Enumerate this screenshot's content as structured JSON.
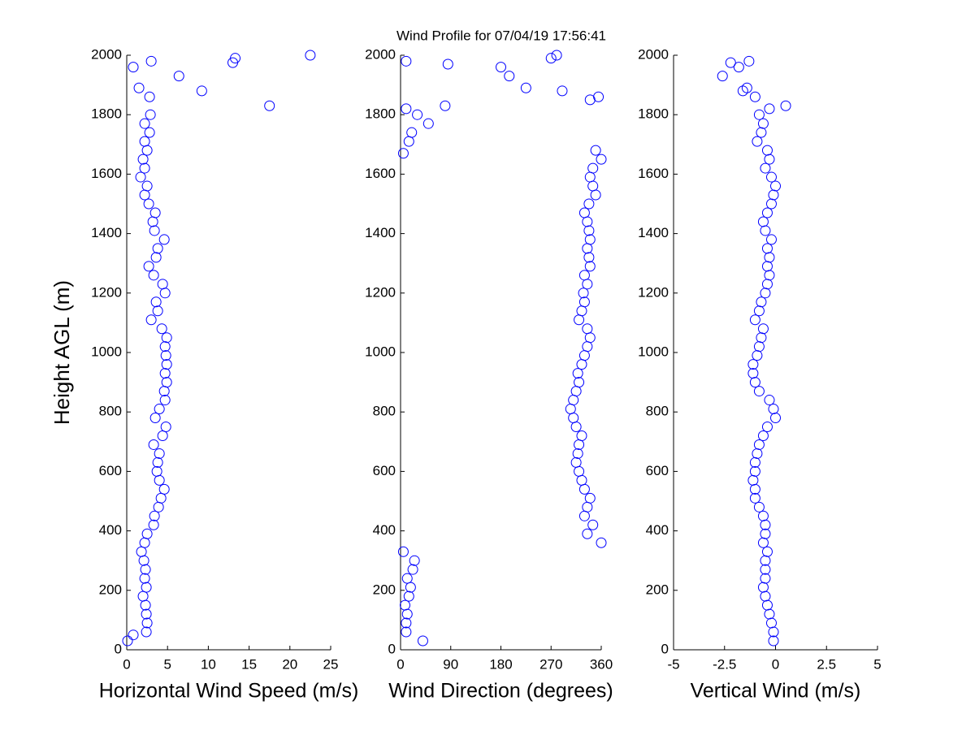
{
  "title": "Wind Profile for  07/04/19 17:56:41",
  "chart_data": [
    {
      "type": "scatter",
      "xlabel": "Horizontal Wind Speed (m/s)",
      "ylabel": "Height AGL (m)",
      "color": "#0000ff",
      "xlim": [
        0,
        25
      ],
      "xticks": [
        0,
        5,
        10,
        15,
        20,
        25
      ],
      "ylim": [
        0,
        2000
      ],
      "yticks": [
        0,
        200,
        400,
        600,
        800,
        1000,
        1200,
        1400,
        1600,
        1800,
        2000
      ],
      "x": [
        0.1,
        2.4,
        2.5,
        2.4,
        2.3,
        2.0,
        2.4,
        2.2,
        2.3,
        2.1,
        1.8,
        2.2,
        2.5,
        3.3,
        3.4,
        3.9,
        4.2,
        4.6,
        4.0,
        3.7,
        3.8,
        4.0,
        3.3,
        4.4,
        4.8,
        3.5,
        4.0,
        4.7,
        4.6,
        4.9,
        4.7,
        4.9,
        4.8,
        4.7,
        4.9,
        4.3,
        3.0,
        3.8,
        3.6,
        4.7,
        4.4,
        3.3,
        2.7,
        3.6,
        3.8,
        4.6,
        3.4,
        3.2,
        3.5,
        2.7,
        2.2,
        2.5,
        1.7,
        2.2,
        2.0,
        2.5,
        2.2,
        2.8,
        2.2,
        2.9,
        17.5,
        9.2,
        6.4,
        0.8,
        13,
        13.3,
        22.5,
        3,
        1.5,
        2.8,
        0.8
      ],
      "y": [
        30,
        60,
        90,
        120,
        150,
        180,
        210,
        240,
        270,
        300,
        330,
        360,
        390,
        420,
        450,
        480,
        510,
        540,
        570,
        600,
        630,
        660,
        690,
        720,
        750,
        780,
        810,
        840,
        870,
        900,
        930,
        960,
        990,
        1020,
        1050,
        1080,
        1110,
        1140,
        1170,
        1200,
        1230,
        1260,
        1290,
        1320,
        1350,
        1380,
        1410,
        1440,
        1470,
        1500,
        1530,
        1560,
        1590,
        1620,
        1650,
        1680,
        1710,
        1740,
        1770,
        1800,
        1830,
        1880,
        1930,
        1960,
        1975,
        1990,
        2000,
        1980,
        1890,
        1860,
        50
      ]
    },
    {
      "type": "scatter",
      "xlabel": "Wind Direction (degrees)",
      "color": "#0000ff",
      "xlim": [
        0,
        360
      ],
      "xticks": [
        0,
        90,
        180,
        270,
        360
      ],
      "ylim": [
        0,
        2000
      ],
      "yticks": [
        0,
        200,
        400,
        600,
        800,
        1000,
        1200,
        1400,
        1600,
        1800,
        2000
      ],
      "x": [
        40,
        10,
        10,
        12,
        8,
        15,
        18,
        12,
        22,
        25,
        5,
        360,
        335,
        345,
        330,
        335,
        340,
        330,
        325,
        320,
        315,
        318,
        320,
        325,
        315,
        310,
        305,
        310,
        315,
        320,
        318,
        325,
        330,
        335,
        340,
        335,
        320,
        325,
        330,
        328,
        335,
        330,
        340,
        338,
        335,
        340,
        338,
        335,
        330,
        338,
        350,
        345,
        340,
        345,
        360,
        350,
        15,
        20,
        50,
        30,
        80,
        290,
        225,
        195,
        180,
        85,
        10,
        270,
        280,
        355,
        340,
        10,
        5
      ],
      "y": [
        30,
        60,
        90,
        120,
        150,
        180,
        210,
        240,
        270,
        300,
        330,
        360,
        390,
        420,
        450,
        480,
        510,
        540,
        570,
        600,
        630,
        660,
        690,
        720,
        750,
        780,
        810,
        840,
        870,
        900,
        930,
        960,
        990,
        1020,
        1050,
        1080,
        1110,
        1140,
        1170,
        1200,
        1230,
        1260,
        1290,
        1320,
        1350,
        1380,
        1410,
        1440,
        1470,
        1500,
        1530,
        1560,
        1590,
        1620,
        1650,
        1680,
        1710,
        1740,
        1770,
        1800,
        1830,
        1880,
        1890,
        1930,
        1960,
        1970,
        1980,
        1990,
        2000,
        1860,
        1850,
        1820,
        1670
      ]
    },
    {
      "type": "scatter",
      "xlabel": "Vertical Wind (m/s)",
      "color": "#0000ff",
      "xlim": [
        -5,
        5
      ],
      "xticks": [
        -5,
        -2.5,
        0,
        2.5,
        5
      ],
      "ylim": [
        0,
        2000
      ],
      "yticks": [
        0,
        200,
        400,
        600,
        800,
        1000,
        1200,
        1400,
        1600,
        1800,
        2000
      ],
      "x": [
        -0.1,
        -0.1,
        -0.2,
        -0.3,
        -0.4,
        -0.5,
        -0.6,
        -0.5,
        -0.5,
        -0.5,
        -0.4,
        -0.6,
        -0.5,
        -0.5,
        -0.6,
        -0.8,
        -1.0,
        -1.0,
        -1.1,
        -1.0,
        -1.0,
        -0.9,
        -0.8,
        -0.6,
        -0.4,
        0,
        -0.1,
        -0.3,
        -0.8,
        -1.0,
        -1.1,
        -1.1,
        -0.9,
        -0.8,
        -0.7,
        -0.6,
        -1.0,
        -0.8,
        -0.7,
        -0.5,
        -0.4,
        -0.3,
        -0.4,
        -0.3,
        -0.4,
        -0.2,
        -0.5,
        -0.6,
        -0.4,
        -0.2,
        -0.1,
        0,
        -0.2,
        -0.5,
        -0.3,
        -0.4,
        -0.9,
        -0.7,
        -0.6,
        -0.8,
        0.5,
        -0.3,
        -1,
        -1.6,
        -1.4,
        -2.6,
        -1.8,
        -2.2,
        -1.3
      ],
      "y": [
        30,
        60,
        90,
        120,
        150,
        180,
        210,
        240,
        270,
        300,
        330,
        360,
        390,
        420,
        450,
        480,
        510,
        540,
        570,
        600,
        630,
        660,
        690,
        720,
        750,
        780,
        810,
        840,
        870,
        900,
        930,
        960,
        990,
        1020,
        1050,
        1080,
        1110,
        1140,
        1170,
        1200,
        1230,
        1260,
        1290,
        1320,
        1350,
        1380,
        1410,
        1440,
        1470,
        1500,
        1530,
        1560,
        1590,
        1620,
        1650,
        1680,
        1710,
        1740,
        1770,
        1800,
        1830,
        1820,
        1860,
        1880,
        1890,
        1930,
        1960,
        1975,
        1980
      ]
    }
  ]
}
